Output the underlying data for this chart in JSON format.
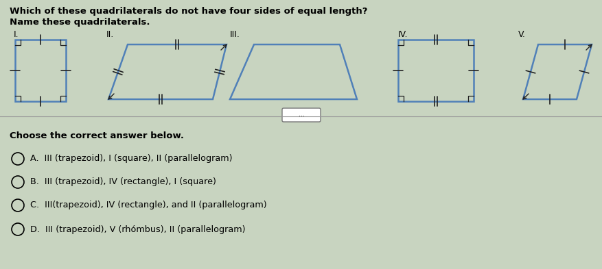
{
  "title_line1": "Which of these quadrilaterals do not have four sides of equal length?",
  "title_line2": "Name these quadrilaterals.",
  "bg_color": "#c8d4c0",
  "shape_color": "#5080b8",
  "shape_lw": 1.8,
  "tick_color": "#222222",
  "answer_section": "Choose the correct answer below.",
  "answers": [
    "A.  III (trapezoid), I (square), II (parallelogram)",
    "B.  III (trapezoid), IV (rectangle), I (square)",
    "C.  III(trapezoid), IV (rectangle), and II (parallelogram)",
    "D.  III (trapezoid), V (rhómbus), II (parallelogram)"
  ],
  "button_label": "..."
}
